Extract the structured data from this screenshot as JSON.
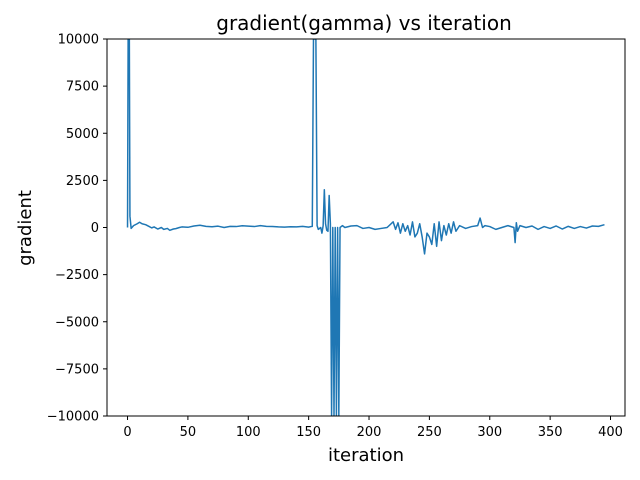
{
  "chart_data": {
    "type": "line",
    "title": "gradient(gamma) vs iteration",
    "xlabel": "iteration",
    "ylabel": "gradient",
    "xlim": [
      -17,
      412
    ],
    "ylim": [
      -10000,
      10000
    ],
    "xticks": [
      0,
      50,
      100,
      150,
      200,
      250,
      300,
      350,
      400
    ],
    "yticks": [
      -10000,
      -7500,
      -5000,
      -2500,
      0,
      2500,
      5000,
      7500,
      10000
    ],
    "xtick_labels": [
      "0",
      "50",
      "100",
      "150",
      "200",
      "250",
      "300",
      "350",
      "400"
    ],
    "ytick_labels": [
      "−10000",
      "−7500",
      "−5000",
      "−2500",
      "0",
      "2500",
      "5000",
      "7500",
      "10000"
    ],
    "grid": false,
    "color": "#1f77b4",
    "series": [
      {
        "x": [
          0,
          0.5,
          1,
          1.5,
          2,
          3,
          5,
          8,
          10,
          12,
          15,
          18,
          20,
          22,
          25,
          28,
          30,
          33,
          35,
          38,
          40,
          43,
          45,
          48,
          50,
          55,
          60,
          65,
          70,
          75,
          80,
          85,
          90,
          95,
          100,
          105,
          110,
          115,
          120,
          125,
          130,
          135,
          140,
          145,
          150,
          152,
          153,
          154,
          155,
          156,
          157,
          158,
          160,
          161,
          162,
          163,
          164,
          165,
          166,
          167,
          168,
          169,
          170,
          171,
          172,
          173,
          174,
          175,
          176,
          177,
          178,
          180,
          185,
          190,
          195,
          200,
          205,
          210,
          215,
          220,
          222,
          224,
          226,
          228,
          230,
          232,
          234,
          236,
          238,
          240,
          242,
          244,
          246,
          248,
          250,
          252,
          254,
          256,
          258,
          260,
          262,
          264,
          266,
          268,
          270,
          272,
          275,
          280,
          285,
          290,
          292,
          294,
          296,
          300,
          305,
          310,
          315,
          320,
          321,
          322,
          323,
          325,
          330,
          335,
          340,
          345,
          350,
          355,
          360,
          365,
          370,
          375,
          380,
          385,
          390,
          395
        ],
        "y": [
          0,
          10000,
          10000,
          10000,
          600,
          -50,
          100,
          200,
          280,
          200,
          150,
          50,
          -20,
          30,
          -80,
          0,
          -100,
          -50,
          -150,
          -80,
          -60,
          0,
          30,
          20,
          10,
          80,
          120,
          60,
          40,
          70,
          0,
          60,
          50,
          90,
          70,
          50,
          100,
          60,
          50,
          30,
          20,
          40,
          30,
          60,
          20,
          50,
          60,
          10000,
          10000,
          10000,
          100,
          -100,
          0,
          -300,
          100,
          2000,
          200,
          -150,
          -200,
          1700,
          200,
          -10000,
          0,
          -10000,
          0,
          -10000,
          0,
          -10000,
          0,
          50,
          100,
          0,
          80,
          100,
          -50,
          0,
          -100,
          -50,
          0,
          300,
          -100,
          250,
          -300,
          200,
          -200,
          100,
          -400,
          300,
          -500,
          -300,
          200,
          -500,
          -1400,
          -300,
          -500,
          -900,
          200,
          -1000,
          300,
          -700,
          100,
          -400,
          200,
          -300,
          300,
          -200,
          100,
          -50,
          50,
          100,
          500,
          0,
          100,
          50,
          -100,
          0,
          100,
          0,
          -800,
          250,
          -200,
          100,
          0,
          80,
          -100,
          50,
          -50,
          80,
          -80,
          60,
          -50,
          50,
          -30,
          80,
          60,
          150
        ]
      }
    ]
  }
}
